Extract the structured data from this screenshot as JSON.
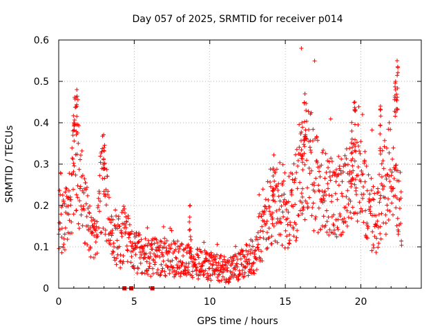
{
  "chart_data": {
    "type": "scatter",
    "title": "Day 057 of 2025, SRMTID for receiver p014",
    "xlabel": "GPS time / hours",
    "ylabel": "SRMTID / TECUs",
    "xlim": [
      0,
      24
    ],
    "ylim": [
      0,
      0.6
    ],
    "grid": true,
    "marker": "plus",
    "series_color": "#ff0000",
    "x_ticks": [
      0,
      5,
      10,
      15,
      20
    ],
    "x_tick_labels": [
      "0",
      "5",
      "10",
      "15",
      "20"
    ],
    "y_ticks": [
      0,
      0.1,
      0.2,
      0.3,
      0.4,
      0.5,
      0.6
    ],
    "y_tick_labels": [
      "0",
      "0.1",
      "0.2",
      "0.3",
      "0.4",
      "0.5",
      "0.6"
    ],
    "zero_square_markers_x": [
      4.35,
      4.8,
      6.2
    ],
    "trend": [
      [
        0.0,
        0.15
      ],
      [
        0.4,
        0.17
      ],
      [
        0.8,
        0.22
      ],
      [
        1.0,
        0.3
      ],
      [
        1.2,
        0.33
      ],
      [
        1.4,
        0.24
      ],
      [
        1.7,
        0.18
      ],
      [
        2.0,
        0.14
      ],
      [
        2.4,
        0.12
      ],
      [
        2.7,
        0.2
      ],
      [
        3.0,
        0.27
      ],
      [
        3.3,
        0.14
      ],
      [
        3.7,
        0.12
      ],
      [
        4.0,
        0.1
      ],
      [
        4.4,
        0.13
      ],
      [
        4.8,
        0.09
      ],
      [
        5.3,
        0.08
      ],
      [
        6.0,
        0.07
      ],
      [
        7.0,
        0.07
      ],
      [
        8.0,
        0.065
      ],
      [
        9.0,
        0.06
      ],
      [
        10.0,
        0.05
      ],
      [
        11.0,
        0.04
      ],
      [
        12.0,
        0.05
      ],
      [
        12.8,
        0.07
      ],
      [
        13.3,
        0.11
      ],
      [
        13.8,
        0.17
      ],
      [
        14.3,
        0.21
      ],
      [
        14.8,
        0.18
      ],
      [
        15.2,
        0.17
      ],
      [
        15.7,
        0.21
      ],
      [
        16.1,
        0.3
      ],
      [
        16.5,
        0.29
      ],
      [
        17.0,
        0.24
      ],
      [
        17.6,
        0.21
      ],
      [
        18.2,
        0.2
      ],
      [
        18.8,
        0.2
      ],
      [
        19.3,
        0.25
      ],
      [
        19.7,
        0.3
      ],
      [
        20.1,
        0.23
      ],
      [
        20.6,
        0.18
      ],
      [
        21.0,
        0.14
      ],
      [
        21.5,
        0.22
      ],
      [
        21.9,
        0.27
      ],
      [
        22.3,
        0.22
      ],
      [
        22.7,
        0.19
      ]
    ],
    "peaks": [
      [
        1.2,
        0.48
      ],
      [
        1.0,
        0.4
      ],
      [
        3.0,
        0.34
      ],
      [
        8.7,
        0.2
      ],
      [
        16.3,
        0.47
      ],
      [
        16.1,
        0.4
      ],
      [
        19.6,
        0.45
      ],
      [
        19.4,
        0.38
      ],
      [
        21.3,
        0.44
      ],
      [
        22.4,
        0.55
      ],
      [
        22.3,
        0.5
      ],
      [
        14.2,
        0.29
      ]
    ]
  }
}
